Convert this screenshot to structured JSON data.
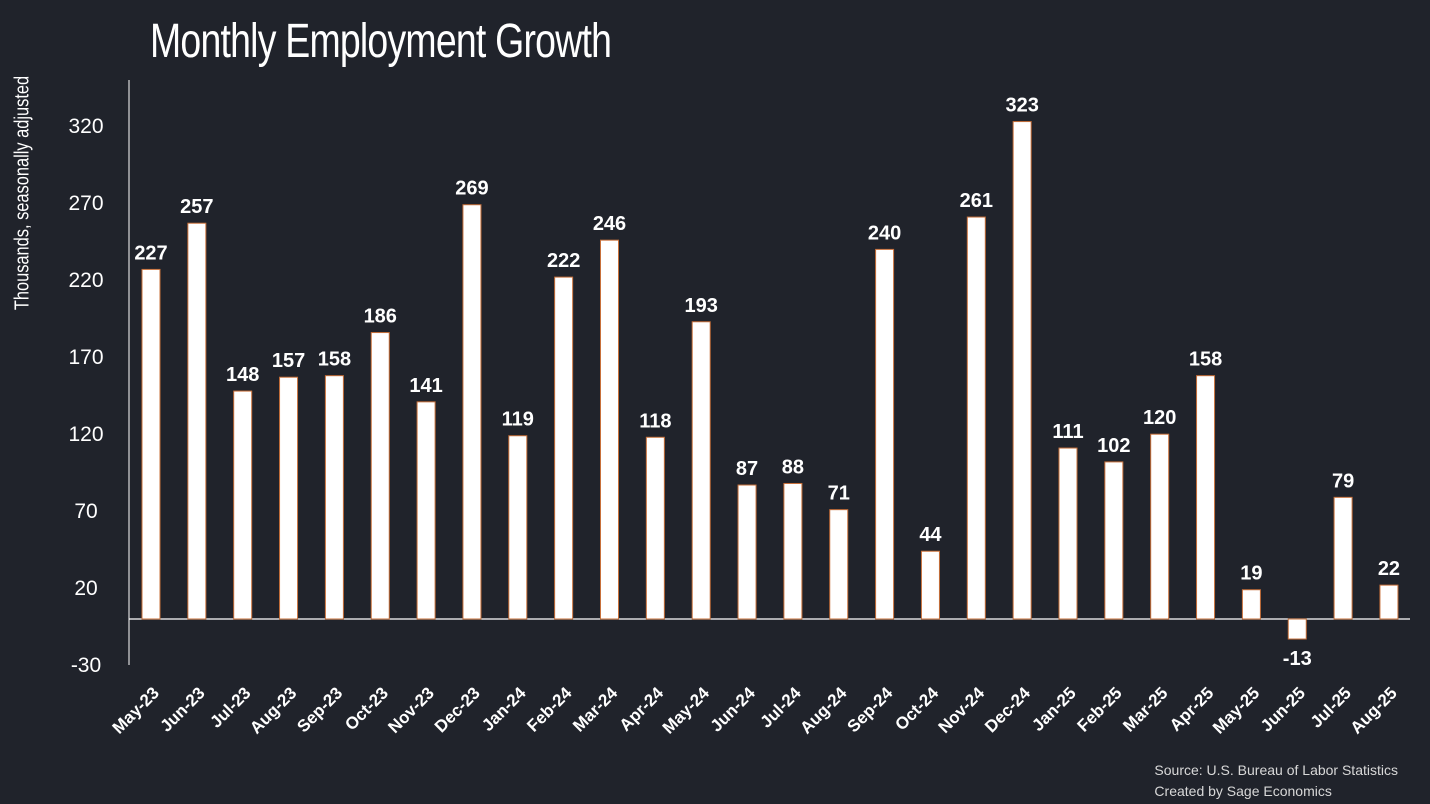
{
  "chart_data": {
    "type": "bar",
    "title": "Monthly Employment Growth",
    "ylabel": "Thousands, seasonally adjusted",
    "xlabel": "",
    "ylim": [
      -30,
      350
    ],
    "yticks": [
      -30,
      20,
      70,
      120,
      170,
      220,
      270,
      320
    ],
    "grid": false,
    "categories": [
      "May-23",
      "Jun-23",
      "Jul-23",
      "Aug-23",
      "Sep-23",
      "Oct-23",
      "Nov-23",
      "Dec-23",
      "Jan-24",
      "Feb-24",
      "Mar-24",
      "Apr-24",
      "May-24",
      "Jun-24",
      "Jul-24",
      "Aug-24",
      "Sep-24",
      "Oct-24",
      "Nov-24",
      "Dec-24",
      "Jan-25",
      "Feb-25",
      "Mar-25",
      "Apr-25",
      "May-25",
      "Jun-25",
      "Jul-25",
      "Aug-25"
    ],
    "values": [
      227,
      257,
      148,
      157,
      158,
      186,
      141,
      269,
      119,
      222,
      246,
      118,
      193,
      87,
      88,
      71,
      240,
      44,
      261,
      323,
      111,
      102,
      120,
      158,
      19,
      -13,
      79,
      22
    ],
    "colors": {
      "bar": "#ffffff",
      "bar_edge": "#c8703a",
      "background": "#20232b"
    }
  },
  "footer": {
    "source": "Source: U.S. Bureau of Labor Statistics",
    "credit": "Created by Sage Economics"
  }
}
